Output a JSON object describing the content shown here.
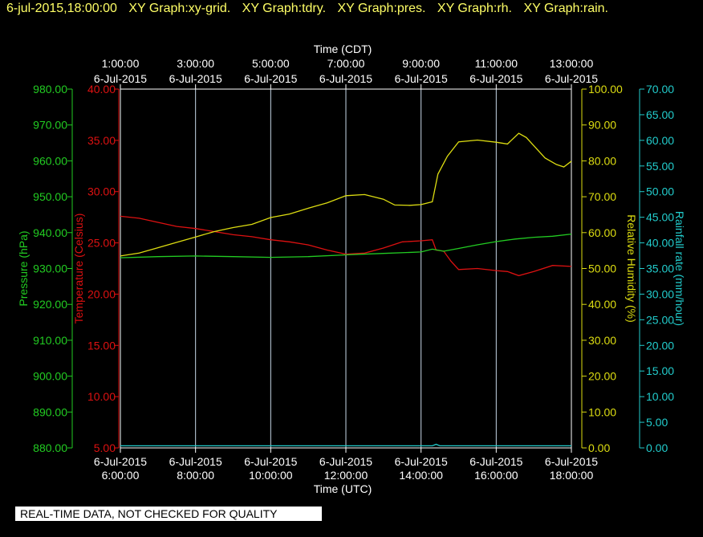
{
  "header": {
    "timestamp": "6-jul-2015,18:00:00",
    "graphs": [
      "XY Graph:xy-grid.",
      "XY Graph:tdry.",
      "XY Graph:pres.",
      "XY Graph:rh.",
      "XY Graph:rain."
    ]
  },
  "footer": {
    "quality_note": "REAL-TIME DATA, NOT CHECKED FOR QUALITY"
  },
  "chart_data": {
    "type": "line",
    "x_top": {
      "label": "Time (CDT)",
      "ticks": [
        {
          "time": "1:00:00",
          "date": "6-Jul-2015"
        },
        {
          "time": "3:00:00",
          "date": "6-Jul-2015"
        },
        {
          "time": "5:00:00",
          "date": "6-Jul-2015"
        },
        {
          "time": "7:00:00",
          "date": "6-Jul-2015"
        },
        {
          "time": "9:00:00",
          "date": "6-Jul-2015"
        },
        {
          "time": "11:00:00",
          "date": "6-Jul-2015"
        },
        {
          "time": "13:00:00",
          "date": "6-Jul-2015"
        }
      ]
    },
    "x_bottom": {
      "label": "Time (UTC)",
      "ticks": [
        {
          "time": "6:00:00",
          "date": "6-Jul-2015"
        },
        {
          "time": "8:00:00",
          "date": "6-Jul-2015"
        },
        {
          "time": "10:00:00",
          "date": "6-Jul-2015"
        },
        {
          "time": "12:00:00",
          "date": "6-Jul-2015"
        },
        {
          "time": "14:00:00",
          "date": "6-Jul-2015"
        },
        {
          "time": "16:00:00",
          "date": "6-Jul-2015"
        },
        {
          "time": "18:00:00",
          "date": "6-Jul-2015"
        }
      ]
    },
    "x_range_utc_hours": [
      6,
      18
    ],
    "grid": "vertical",
    "axes": {
      "pressure": {
        "label": "Pressure (hPa)",
        "range": [
          880,
          980
        ],
        "ticks": [
          "880.00",
          "890.00",
          "900.00",
          "910.00",
          "920.00",
          "930.00",
          "940.00",
          "950.00",
          "960.00",
          "970.00",
          "980.00"
        ],
        "color": "#22cc22"
      },
      "temperature": {
        "label": "Temperature (Celsius)",
        "range": [
          5,
          40
        ],
        "ticks": [
          "5.00",
          "10.00",
          "15.00",
          "20.00",
          "25.00",
          "30.00",
          "35.00",
          "40.00"
        ],
        "color": "#dd1111"
      },
      "humidity": {
        "label": "Relative Humidity (%)",
        "range": [
          0,
          100
        ],
        "ticks": [
          "0.00",
          "10.00",
          "20.00",
          "30.00",
          "40.00",
          "50.00",
          "60.00",
          "70.00",
          "80.00",
          "90.00",
          "100.00"
        ],
        "color": "#dddd11"
      },
      "rain": {
        "label": "Rainfall rate (mm/hour)",
        "range": [
          0,
          70
        ],
        "ticks": [
          "0.00",
          "5.00",
          "10.00",
          "15.00",
          "20.00",
          "25.00",
          "30.00",
          "35.00",
          "40.00",
          "45.00",
          "50.00",
          "55.00",
          "60.00",
          "65.00",
          "70.00"
        ],
        "color": "#22cccc"
      }
    },
    "series": [
      {
        "axis": "temperature",
        "points": [
          [
            6,
            27.6
          ],
          [
            6.5,
            27.4
          ],
          [
            7,
            27.0
          ],
          [
            7.5,
            26.6
          ],
          [
            8,
            26.4
          ],
          [
            8.5,
            26.1
          ],
          [
            9,
            25.8
          ],
          [
            9.5,
            25.6
          ],
          [
            10,
            25.3
          ],
          [
            10.5,
            25.1
          ],
          [
            11,
            24.8
          ],
          [
            11.5,
            24.3
          ],
          [
            12,
            23.9
          ],
          [
            12.5,
            24.0
          ],
          [
            13,
            24.5
          ],
          [
            13.5,
            25.1
          ],
          [
            14,
            25.2
          ],
          [
            14.3,
            25.3
          ],
          [
            14.4,
            24.3
          ],
          [
            14.6,
            24.2
          ],
          [
            14.8,
            23.2
          ],
          [
            15,
            22.4
          ],
          [
            15.5,
            22.5
          ],
          [
            16,
            22.3
          ],
          [
            16.3,
            22.2
          ],
          [
            16.6,
            21.8
          ],
          [
            17,
            22.2
          ],
          [
            17.5,
            22.8
          ],
          [
            18,
            22.7
          ]
        ]
      },
      {
        "axis": "humidity",
        "points": [
          [
            6,
            53.5
          ],
          [
            6.5,
            54.3
          ],
          [
            7,
            55.8
          ],
          [
            7.5,
            57.3
          ],
          [
            8,
            58.8
          ],
          [
            8.5,
            60.3
          ],
          [
            9,
            61.4
          ],
          [
            9.5,
            62.3
          ],
          [
            10,
            64.2
          ],
          [
            10.5,
            65.2
          ],
          [
            11,
            66.8
          ],
          [
            11.5,
            68.3
          ],
          [
            12,
            70.3
          ],
          [
            12.5,
            70.6
          ],
          [
            13,
            69.3
          ],
          [
            13.3,
            67.7
          ],
          [
            13.7,
            67.6
          ],
          [
            14,
            67.8
          ],
          [
            14.3,
            68.6
          ],
          [
            14.45,
            76.3
          ],
          [
            14.7,
            81.3
          ],
          [
            15,
            85.3
          ],
          [
            15.5,
            85.8
          ],
          [
            16,
            85.2
          ],
          [
            16.3,
            84.7
          ],
          [
            16.6,
            87.7
          ],
          [
            16.8,
            86.5
          ],
          [
            17,
            84.2
          ],
          [
            17.3,
            80.8
          ],
          [
            17.6,
            79.0
          ],
          [
            17.8,
            78.3
          ],
          [
            18,
            79.9
          ]
        ]
      },
      {
        "axis": "pressure",
        "points": [
          [
            6,
            933.0
          ],
          [
            7,
            933.3
          ],
          [
            8,
            933.5
          ],
          [
            9,
            933.3
          ],
          [
            10,
            933.1
          ],
          [
            11,
            933.3
          ],
          [
            12,
            933.8
          ],
          [
            13,
            934.2
          ],
          [
            14,
            934.6
          ],
          [
            14.3,
            935.4
          ],
          [
            14.6,
            934.8
          ],
          [
            15,
            935.6
          ],
          [
            15.5,
            936.6
          ],
          [
            16,
            937.5
          ],
          [
            16.5,
            938.2
          ],
          [
            17,
            938.7
          ],
          [
            17.5,
            939.0
          ],
          [
            18,
            939.6
          ]
        ]
      },
      {
        "axis": "rain",
        "points": [
          [
            6,
            0.4
          ],
          [
            14.3,
            0.4
          ],
          [
            14.4,
            0.7
          ],
          [
            14.5,
            0.4
          ],
          [
            18,
            0.4
          ]
        ]
      }
    ]
  }
}
